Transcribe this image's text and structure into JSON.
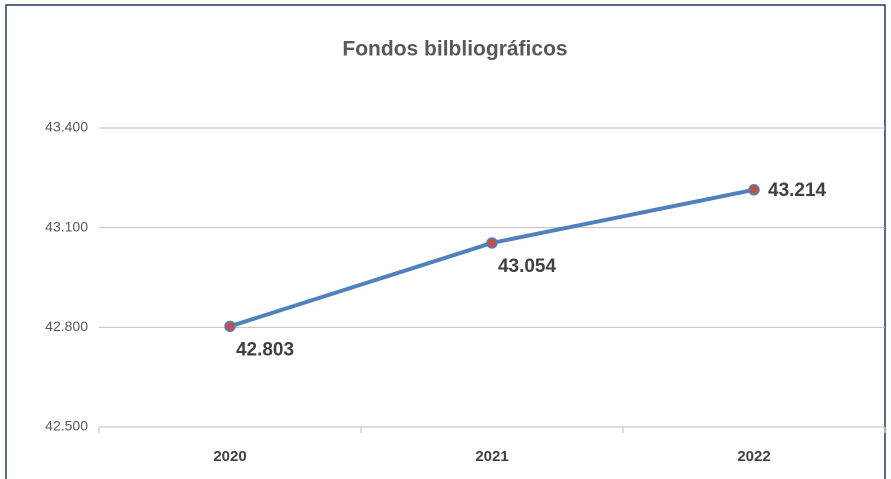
{
  "chart_data": {
    "type": "line",
    "title": "Fondos bilbliográficos",
    "categories": [
      "2020",
      "2021",
      "2022"
    ],
    "series": [
      {
        "name": "Fondos bilbliográficos",
        "color": "#4f81bd",
        "marker_color": "#c0504d",
        "values": [
          42803,
          43054,
          43214
        ],
        "value_labels": [
          "42.803",
          "43.054",
          "43.214"
        ]
      }
    ],
    "ylim": [
      42500,
      43400
    ],
    "yticks": [
      {
        "value": 42500,
        "label": "42.500"
      },
      {
        "value": 42800,
        "label": "42.800"
      },
      {
        "value": 43100,
        "label": "43.100"
      },
      {
        "value": 43400,
        "label": "43.400"
      }
    ],
    "grid": true
  }
}
